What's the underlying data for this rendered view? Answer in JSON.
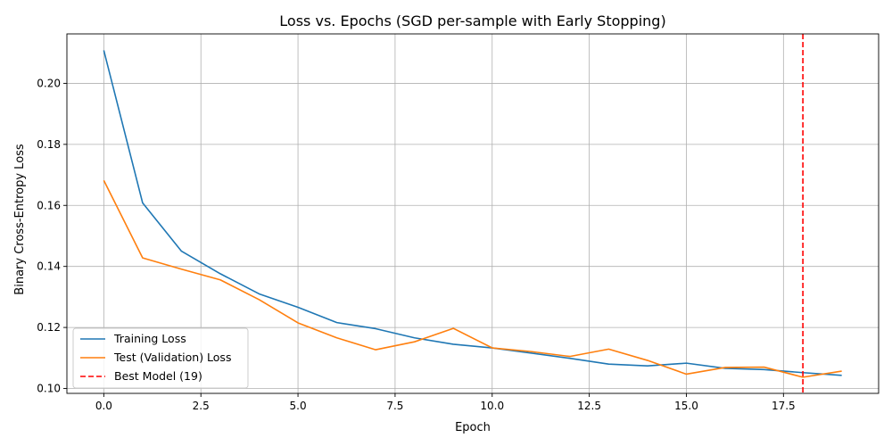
{
  "colors": {
    "training": "#1f77b4",
    "test": "#ff7f0e",
    "best": "#ff0000",
    "grid": "#b0b0b0",
    "axis": "#000000"
  },
  "chart_data": {
    "type": "line",
    "title": "Loss vs. Epochs (SGD per-sample with Early Stopping)",
    "xlabel": "Epoch",
    "ylabel": "Binary Cross-Entropy Loss",
    "xlim": [
      -0.95,
      19.95
    ],
    "ylim": [
      0.0984,
      0.2162
    ],
    "x_ticks": [
      0.0,
      2.5,
      5.0,
      7.5,
      10.0,
      12.5,
      15.0,
      17.5
    ],
    "x_tick_labels": [
      "0.0",
      "2.5",
      "5.0",
      "7.5",
      "10.0",
      "12.5",
      "15.0",
      "17.5"
    ],
    "y_ticks": [
      0.1,
      0.12,
      0.14,
      0.16,
      0.18,
      0.2
    ],
    "y_tick_labels": [
      "0.10",
      "0.12",
      "0.14",
      "0.16",
      "0.18",
      "0.20"
    ],
    "grid": true,
    "legend_position": "lower-left",
    "x": [
      0,
      1,
      2,
      3,
      4,
      5,
      6,
      7,
      8,
      9,
      10,
      11,
      12,
      13,
      14,
      15,
      16,
      17,
      18,
      19
    ],
    "series": [
      {
        "name": "Training Loss",
        "style": "solid",
        "values": [
          0.2108,
          0.1608,
          0.145,
          0.1376,
          0.131,
          0.1266,
          0.1216,
          0.1196,
          0.1166,
          0.1145,
          0.1133,
          0.1116,
          0.1099,
          0.108,
          0.1074,
          0.1083,
          0.1066,
          0.1062,
          0.1052,
          0.1043
        ]
      },
      {
        "name": "Test (Validation) Loss",
        "style": "solid",
        "values": [
          0.1682,
          0.1428,
          0.1391,
          0.1356,
          0.1291,
          0.1215,
          0.1166,
          0.1127,
          0.1153,
          0.1197,
          0.1133,
          0.1121,
          0.1105,
          0.1129,
          0.1092,
          0.1047,
          0.1069,
          0.107,
          0.1037,
          0.1057
        ]
      }
    ],
    "vlines": [
      {
        "name": "Best Model (19)",
        "x": 18,
        "style": "dashed"
      }
    ]
  }
}
